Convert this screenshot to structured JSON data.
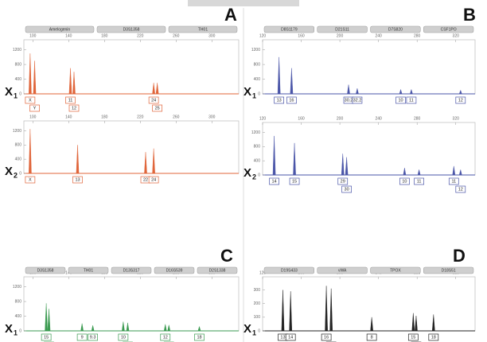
{
  "chart_data": [
    {
      "type": "peaks",
      "panel": "A",
      "loci": [
        "Amelogenin",
        "D3S1358",
        "TH01"
      ],
      "trace_label": "X",
      "trace_sub": "1",
      "color": "#e0653a",
      "xlim": [
        90,
        330
      ],
      "xticks": [
        100,
        140,
        180,
        220,
        260,
        300
      ],
      "ylim": [
        0,
        1300
      ],
      "yticks": [
        0,
        400,
        800,
        1200
      ],
      "x": [
        97,
        102,
        142,
        146,
        235,
        239
      ],
      "values": [
        1100,
        900,
        700,
        600,
        300,
        300
      ],
      "allele_labels": [
        "X",
        "Y",
        "11",
        "12",
        "24",
        "25"
      ]
    },
    {
      "type": "peaks",
      "trace_label": "X",
      "trace_sub": "2",
      "color": "#e0653a",
      "xlim": [
        90,
        330
      ],
      "xticks": [
        100,
        140,
        180,
        220,
        260,
        300
      ],
      "ylim": [
        0,
        1300
      ],
      "yticks": [
        0,
        400,
        800,
        1200
      ],
      "x": [
        97,
        150,
        226,
        235
      ],
      "values": [
        1250,
        800,
        600,
        700
      ],
      "allele_labels": [
        "X",
        "13",
        "22",
        "24"
      ]
    },
    {
      "type": "peaks",
      "panel": "B",
      "loci": [
        "D8S1179",
        "D21S11",
        "D7S820",
        "CSF1PO"
      ],
      "trace_label": "X",
      "trace_sub": "1",
      "color": "#4a55a8",
      "xlim": [
        120,
        340
      ],
      "xticks": [
        120,
        160,
        200,
        240,
        280,
        320
      ],
      "ylim": [
        0,
        1300
      ],
      "yticks": [
        0,
        400,
        800,
        1200
      ],
      "x": [
        137,
        150,
        209,
        218,
        263,
        274,
        325
      ],
      "values": [
        1000,
        700,
        250,
        150,
        120,
        120,
        100
      ],
      "allele_labels": [
        "13",
        "16",
        "30.2",
        "32.2",
        "10",
        "11",
        "12"
      ]
    },
    {
      "type": "peaks",
      "trace_label": "X",
      "trace_sub": "2",
      "color": "#4a55a8",
      "xlim": [
        120,
        340
      ],
      "xticks": [
        120,
        160,
        200,
        240,
        280,
        320
      ],
      "ylim": [
        0,
        1300
      ],
      "yticks": [
        0,
        400,
        800,
        1200
      ],
      "x": [
        132,
        153,
        203,
        207,
        267,
        282,
        318,
        325
      ],
      "values": [
        1100,
        900,
        600,
        500,
        200,
        150,
        250,
        150
      ],
      "allele_labels": [
        "14",
        "15",
        "29",
        "30",
        "10",
        "11",
        "11",
        "12"
      ]
    },
    {
      "type": "peaks",
      "panel": "C",
      "loci": [
        "D3S1358",
        "TH01",
        "D13S317",
        "D16S539",
        "D2S1338"
      ],
      "trace_label": "X",
      "trace_sub": "1",
      "color": "#3a9a50",
      "xlim": [
        90,
        330
      ],
      "xticks": [
        100,
        140,
        180,
        220,
        260,
        300
      ],
      "ylim": [
        0,
        1300
      ],
      "yticks": [
        0,
        400,
        800,
        1200
      ],
      "x": [
        115,
        118,
        155,
        167,
        201,
        206,
        248,
        252,
        286
      ],
      "values": [
        750,
        600,
        200,
        150,
        250,
        220,
        180,
        160,
        120
      ],
      "allele_labels": [
        "15",
        "16",
        "9",
        "9.3",
        "10",
        "12",
        "12",
        "13",
        "18"
      ]
    },
    {
      "type": "peaks",
      "panel": "D",
      "loci": [
        "D19S433",
        "vWA",
        "TPOX",
        "D18S51"
      ],
      "trace_label": "X",
      "trace_sub": "1",
      "color": "#222222",
      "xlim": [
        120,
        340
      ],
      "xticks": [
        120,
        160,
        200,
        240,
        280,
        320
      ],
      "ylim": [
        0,
        350
      ],
      "yticks": [
        0,
        100,
        200,
        300
      ],
      "x": [
        141,
        149,
        186,
        191,
        233,
        276,
        279,
        297
      ],
      "values": [
        300,
        290,
        330,
        310,
        100,
        130,
        110,
        120
      ],
      "allele_labels": [
        "13",
        "14",
        "16",
        "17",
        "8",
        "15",
        "16",
        "18"
      ]
    }
  ]
}
